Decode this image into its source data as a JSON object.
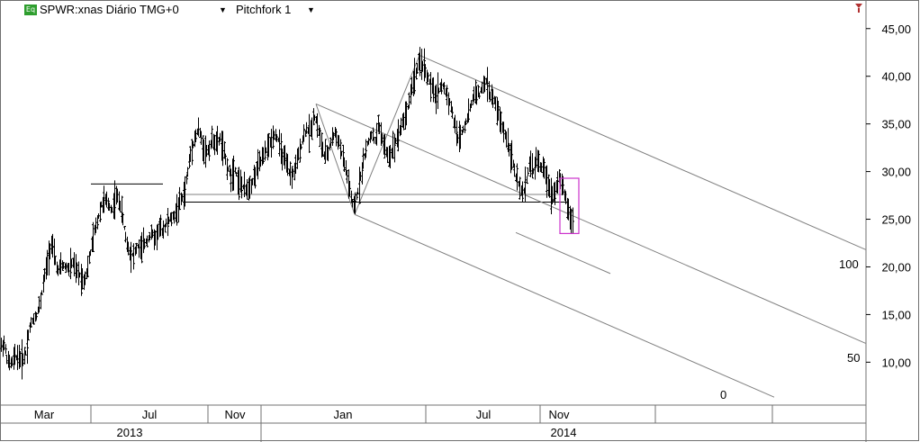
{
  "header": {
    "instrument_icon": "Eq",
    "title": "SPWR:xnas Diário TMG+0",
    "study": "Pitchfork 1",
    "dropdown_icon": "chevron-down-icon"
  },
  "corner_icon": "pin-icon",
  "colors": {
    "price": "#000000",
    "pitchfork": "#808080",
    "highlight": "#cc33cc",
    "support": "#000000",
    "axis": "#707070"
  },
  "pitchfork_labels": [
    "100",
    "50",
    "0"
  ],
  "chart_data": {
    "type": "ohlc-bar",
    "ylim": [
      5.5,
      48
    ],
    "y_ticks": [
      "10,00",
      "15,00",
      "20,00",
      "25,00",
      "30,00",
      "35,00",
      "40,00",
      "45,00"
    ],
    "x_months": [
      "Mar",
      "Jul",
      "Nov",
      "Jan",
      "Jul",
      "Nov"
    ],
    "x_years": [
      "2013",
      "2014"
    ],
    "price_path": [
      [
        0,
        11.5
      ],
      [
        4,
        12.0
      ],
      [
        8,
        10.0
      ],
      [
        12,
        9.8
      ],
      [
        16,
        10.5
      ],
      [
        20,
        10.6
      ],
      [
        24,
        10.2
      ],
      [
        28,
        11.0
      ],
      [
        32,
        13.5
      ],
      [
        36,
        14.5
      ],
      [
        40,
        15.0
      ],
      [
        44,
        16.2
      ],
      [
        48,
        18.5
      ],
      [
        52,
        20.5
      ],
      [
        56,
        22.5
      ],
      [
        60,
        21.0
      ],
      [
        64,
        19.5
      ],
      [
        68,
        20.2
      ],
      [
        72,
        20.0
      ],
      [
        76,
        19.8
      ],
      [
        80,
        20.5
      ],
      [
        84,
        19.5
      ],
      [
        88,
        19.2
      ],
      [
        92,
        18.5
      ],
      [
        96,
        19.5
      ],
      [
        100,
        21.5
      ],
      [
        104,
        23.5
      ],
      [
        108,
        25.0
      ],
      [
        112,
        26.5
      ],
      [
        116,
        27.0
      ],
      [
        120,
        26.5
      ],
      [
        124,
        26.0
      ],
      [
        128,
        27.5
      ],
      [
        132,
        27.0
      ],
      [
        136,
        25.0
      ],
      [
        140,
        22.5
      ],
      [
        144,
        21.5
      ],
      [
        148,
        21.2
      ],
      [
        152,
        22.2
      ],
      [
        156,
        21.8
      ],
      [
        160,
        22.5
      ],
      [
        164,
        23.0
      ],
      [
        168,
        23.5
      ],
      [
        172,
        23.0
      ],
      [
        176,
        24.0
      ],
      [
        180,
        23.8
      ],
      [
        184,
        24.5
      ],
      [
        188,
        25.0
      ],
      [
        192,
        25.2
      ],
      [
        196,
        26.0
      ],
      [
        200,
        27.0
      ],
      [
        204,
        27.5
      ],
      [
        208,
        30.0
      ],
      [
        212,
        32.5
      ],
      [
        216,
        33.5
      ],
      [
        220,
        34.5
      ],
      [
        224,
        33.0
      ],
      [
        228,
        32.0
      ],
      [
        232,
        32.5
      ],
      [
        236,
        33.5
      ],
      [
        240,
        32.8
      ],
      [
        244,
        33.5
      ],
      [
        248,
        32.0
      ],
      [
        252,
        30.5
      ],
      [
        256,
        29.5
      ],
      [
        260,
        30.5
      ],
      [
        264,
        29.0
      ],
      [
        268,
        28.5
      ],
      [
        272,
        28.0
      ],
      [
        276,
        28.5
      ],
      [
        280,
        29.0
      ],
      [
        284,
        30.0
      ],
      [
        288,
        31.0
      ],
      [
        292,
        31.5
      ],
      [
        296,
        32.5
      ],
      [
        300,
        33.0
      ],
      [
        304,
        34.0
      ],
      [
        308,
        33.5
      ],
      [
        312,
        32.0
      ],
      [
        316,
        31.0
      ],
      [
        320,
        30.0
      ],
      [
        324,
        29.5
      ],
      [
        328,
        30.5
      ],
      [
        332,
        32.0
      ],
      [
        336,
        33.5
      ],
      [
        340,
        34.5
      ],
      [
        344,
        34.0
      ],
      [
        348,
        36.0
      ],
      [
        352,
        35.0
      ],
      [
        356,
        33.0
      ],
      [
        360,
        31.5
      ],
      [
        364,
        32.0
      ],
      [
        368,
        33.5
      ],
      [
        372,
        34.0
      ],
      [
        376,
        33.0
      ],
      [
        380,
        31.5
      ],
      [
        384,
        30.0
      ],
      [
        388,
        28.0
      ],
      [
        392,
        26.0
      ],
      [
        396,
        27.5
      ],
      [
        400,
        29.5
      ],
      [
        404,
        31.5
      ],
      [
        408,
        33.0
      ],
      [
        412,
        34.0
      ],
      [
        416,
        33.0
      ],
      [
        420,
        35.0
      ],
      [
        424,
        33.5
      ],
      [
        428,
        32.0
      ],
      [
        432,
        31.5
      ],
      [
        436,
        32.5
      ],
      [
        440,
        33.5
      ],
      [
        444,
        34.5
      ],
      [
        448,
        35.5
      ],
      [
        452,
        36.5
      ],
      [
        456,
        38.5
      ],
      [
        460,
        40.0
      ],
      [
        464,
        41.0
      ],
      [
        468,
        41.5
      ],
      [
        472,
        40.5
      ],
      [
        476,
        39.5
      ],
      [
        480,
        38.5
      ],
      [
        484,
        38.0
      ],
      [
        488,
        38.8
      ],
      [
        492,
        39.0
      ],
      [
        496,
        38.0
      ],
      [
        500,
        37.0
      ],
      [
        504,
        35.0
      ],
      [
        508,
        33.5
      ],
      [
        512,
        34.0
      ],
      [
        516,
        35.0
      ],
      [
        520,
        36.0
      ],
      [
        524,
        37.5
      ],
      [
        528,
        38.5
      ],
      [
        532,
        38.0
      ],
      [
        536,
        39.0
      ],
      [
        540,
        39.5
      ],
      [
        544,
        38.0
      ],
      [
        548,
        37.5
      ],
      [
        552,
        36.5
      ],
      [
        556,
        35.0
      ],
      [
        560,
        34.0
      ],
      [
        564,
        33.0
      ],
      [
        568,
        31.5
      ],
      [
        572,
        29.5
      ],
      [
        576,
        28.5
      ],
      [
        580,
        27.5
      ],
      [
        584,
        29.0
      ],
      [
        588,
        31.0
      ],
      [
        592,
        30.0
      ],
      [
        596,
        31.5
      ],
      [
        600,
        30.5
      ],
      [
        604,
        30.0
      ],
      [
        608,
        29.0
      ],
      [
        612,
        27.5
      ],
      [
        616,
        28.0
      ],
      [
        620,
        29.5
      ],
      [
        624,
        28.5
      ],
      [
        628,
        27.0
      ],
      [
        632,
        25.5
      ],
      [
        636,
        24.5
      ]
    ],
    "swing_levels": [
      {
        "x1": 101,
        "x2": 181,
        "y": 28.7
      },
      {
        "x1": 203,
        "x2": 630,
        "y": 27.6
      },
      {
        "x1": 203,
        "x2": 630,
        "y": 26.8
      }
    ],
    "pitchfork": {
      "pivot_a": [
        351,
        37.1
      ],
      "pivot_b": [
        466,
        42.2
      ],
      "pivot_c": [
        394,
        25.5
      ]
    },
    "extra_line": {
      "from": [
        573,
        23.6
      ],
      "to": [
        678,
        19.3
      ]
    },
    "highlight_box": {
      "from": [
        622,
        29.3
      ],
      "to": [
        643,
        23.5
      ]
    }
  }
}
